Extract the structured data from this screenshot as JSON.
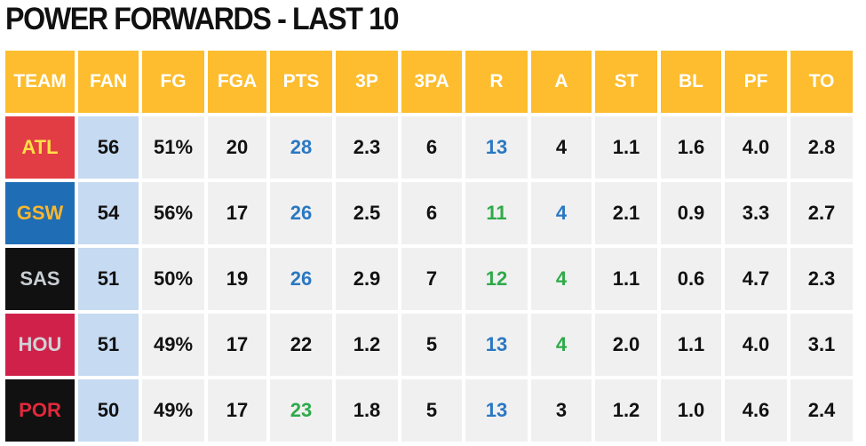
{
  "title": "POWER FORWARDS - LAST 10",
  "table": {
    "header": [
      "TEAM",
      "FAN",
      "FG",
      "FGA",
      "PTS",
      "3P",
      "3PA",
      "R",
      "A",
      "ST",
      "BL",
      "PF",
      "TO"
    ],
    "rows": [
      [
        "ATL",
        "56",
        "51%",
        "20",
        "28",
        "2.3",
        "6",
        "13",
        "4",
        "1.1",
        "1.6",
        "4.0",
        "2.8"
      ],
      [
        "GSW",
        "54",
        "56%",
        "17",
        "26",
        "2.5",
        "6",
        "11",
        "4",
        "2.1",
        "0.9",
        "3.3",
        "2.7"
      ],
      [
        "SAS",
        "51",
        "50%",
        "19",
        "26",
        "2.9",
        "7",
        "12",
        "4",
        "1.1",
        "0.6",
        "4.7",
        "2.3"
      ],
      [
        "HOU",
        "51",
        "49%",
        "17",
        "22",
        "1.2",
        "5",
        "13",
        "4",
        "2.0",
        "1.1",
        "4.0",
        "3.1"
      ],
      [
        "POR",
        "50",
        "49%",
        "17",
        "23",
        "1.8",
        "5",
        "13",
        "3",
        "1.2",
        "1.0",
        "4.6",
        "2.4"
      ]
    ]
  }
}
